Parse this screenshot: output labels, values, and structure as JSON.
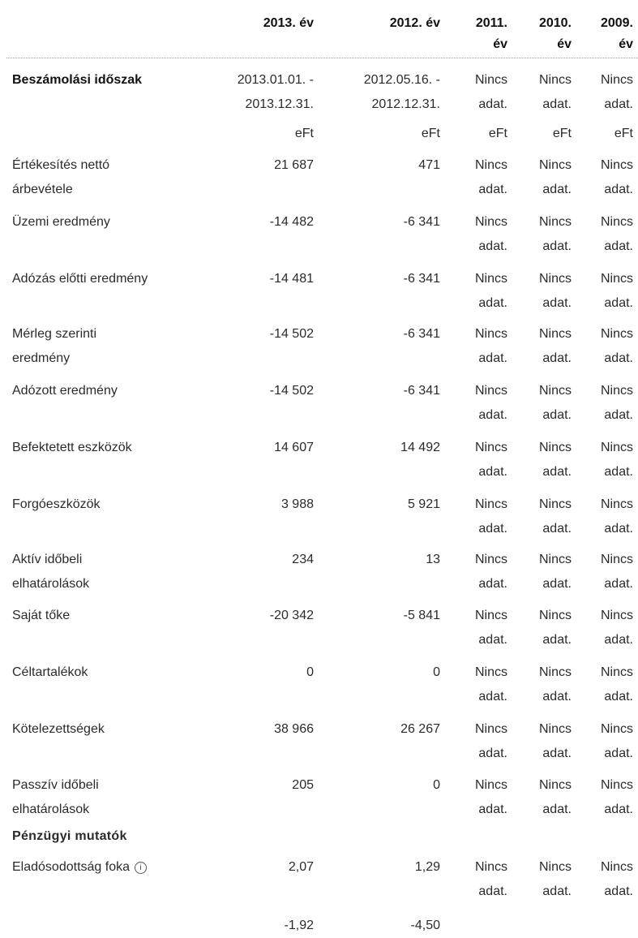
{
  "header": {
    "columns": [
      "2013. év",
      "2012. év",
      "2011. év",
      "2010. év",
      "2009. év"
    ],
    "col_line1": [
      "2013. év",
      "2012. év",
      "2011.",
      "2010.",
      "2009."
    ],
    "col_line2": [
      "",
      "",
      "év",
      "év",
      "év"
    ]
  },
  "period": {
    "label": "Beszámolási időszak",
    "line1": [
      "2013.01.01. -",
      "2012.05.16. -",
      "Nincs",
      "Nincs",
      "Nincs"
    ],
    "line2": [
      "2013.12.31.",
      "2012.12.31.",
      "adat.",
      "adat.",
      "adat."
    ],
    "units": [
      "eFt",
      "eFt",
      "eFt",
      "eFt",
      "eFt"
    ]
  },
  "rows": [
    {
      "label": [
        "Értékesítés nettó",
        "árbevétele"
      ],
      "values": [
        "21 687",
        "471"
      ]
    },
    {
      "label": [
        "Üzemi eredmény"
      ],
      "values": [
        "-14 482",
        "-6 341"
      ]
    },
    {
      "label": [
        "Adózás előtti eredmény"
      ],
      "values": [
        "-14 481",
        "-6 341"
      ]
    },
    {
      "label": [
        "Mérleg szerinti",
        "eredmény"
      ],
      "values": [
        "-14 502",
        "-6 341"
      ]
    },
    {
      "label": [
        "Adózott eredmény"
      ],
      "values": [
        "-14 502",
        "-6 341"
      ]
    },
    {
      "label": [
        "Befektetett eszközök"
      ],
      "values": [
        "14 607",
        "14 492"
      ]
    },
    {
      "label": [
        "Forgóeszközök"
      ],
      "values": [
        "3 988",
        "5 921"
      ]
    },
    {
      "label": [
        "Aktív időbeli",
        "elhatárolások"
      ],
      "values": [
        "234",
        "13"
      ]
    },
    {
      "label": [
        "Saját tőke"
      ],
      "values": [
        "-20 342",
        "-5 841"
      ]
    },
    {
      "label": [
        "Céltartalékok"
      ],
      "values": [
        "0",
        "0"
      ]
    },
    {
      "label": [
        "Kötelezettségek"
      ],
      "values": [
        "38 966",
        "26 267"
      ]
    },
    {
      "label": [
        "Passzív időbeli",
        "elhatárolások"
      ],
      "values": [
        "205",
        "0"
      ]
    }
  ],
  "no_data": {
    "line1": "Nincs",
    "line2": "adat."
  },
  "section_title": "Pénzügyi mutatók",
  "indicators": [
    {
      "label": "Eladósodottság foka",
      "icon": "info-icon",
      "values": [
        "2,07",
        "1,29"
      ]
    },
    {
      "label": "",
      "values": [
        "-1,92",
        "-4,50"
      ]
    }
  ]
}
